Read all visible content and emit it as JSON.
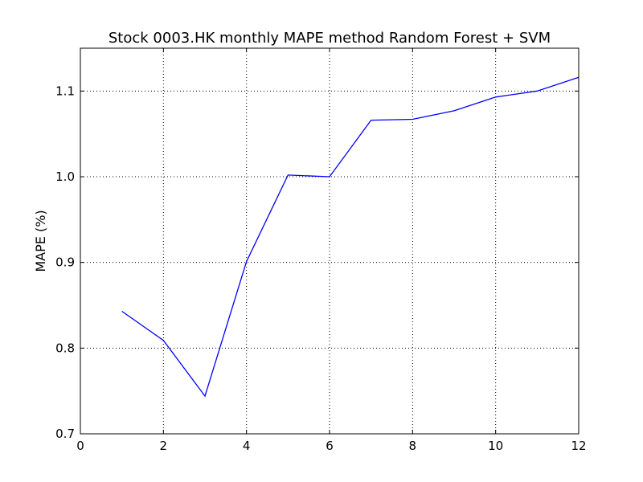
{
  "colors": {
    "line": "#0000ff",
    "axis": "#000000",
    "grid": "#000000",
    "background": "#ffffff"
  },
  "chart_data": {
    "type": "line",
    "title": "Stock 0003.HK monthly MAPE method Random Forest + SVM",
    "xlabel": "",
    "ylabel": "MAPE (%)",
    "xlim": [
      0,
      12
    ],
    "ylim": [
      0.7,
      1.15
    ],
    "xticks": [
      0,
      2,
      4,
      6,
      8,
      10,
      12
    ],
    "yticks": [
      0.7,
      0.8,
      0.9,
      1.0,
      1.1
    ],
    "xtick_labels": [
      "0",
      "2",
      "4",
      "6",
      "8",
      "10",
      "12"
    ],
    "ytick_labels": [
      "0.7",
      "0.8",
      "0.9",
      "1.0",
      "1.1"
    ],
    "grid": true,
    "grid_style": "dotted",
    "legend": "none",
    "series": [
      {
        "x": [
          1,
          2,
          3,
          4,
          5,
          6,
          7,
          8,
          9,
          10,
          11,
          12
        ],
        "values": [
          0.843,
          0.809,
          0.744,
          0.901,
          1.002,
          1.0,
          1.066,
          1.067,
          1.077,
          1.093,
          1.1,
          1.116
        ]
      }
    ]
  }
}
